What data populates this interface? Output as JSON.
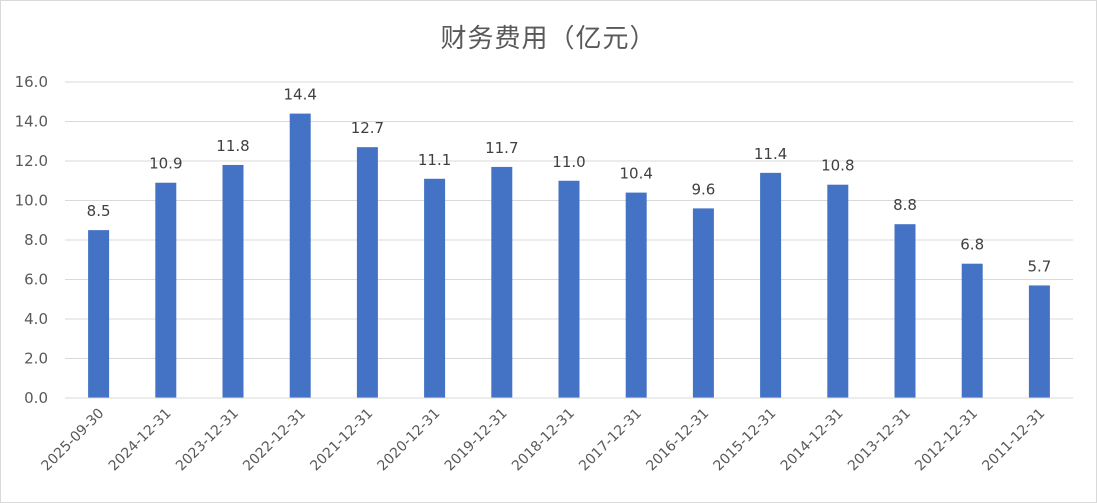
{
  "chart_data": {
    "type": "bar",
    "title": "财务费用（亿元）",
    "xlabel": "",
    "ylabel": "",
    "categories": [
      "2025-09-30",
      "2024-12-31",
      "2023-12-31",
      "2022-12-31",
      "2021-12-31",
      "2020-12-31",
      "2019-12-31",
      "2018-12-31",
      "2017-12-31",
      "2016-12-31",
      "2015-12-31",
      "2014-12-31",
      "2013-12-31",
      "2012-12-31",
      "2011-12-31"
    ],
    "values": [
      8.5,
      10.9,
      11.8,
      14.4,
      12.7,
      11.1,
      11.7,
      11.0,
      10.4,
      9.6,
      11.4,
      10.8,
      8.8,
      6.8,
      5.7
    ],
    "value_labels": [
      "8.5",
      "10.9",
      "11.8",
      "14.4",
      "12.7",
      "11.1",
      "11.7",
      "11.0",
      "10.4",
      "9.6",
      "11.4",
      "10.8",
      "8.8",
      "6.8",
      "5.7"
    ],
    "ylim": [
      0,
      16
    ],
    "yticks": [
      "0.0",
      "2.0",
      "4.0",
      "6.0",
      "8.0",
      "10.0",
      "12.0",
      "14.0",
      "16.0"
    ],
    "grid": true,
    "legend": "none",
    "bar_color": "#4472c4",
    "grid_color": "#d9d9d9"
  }
}
